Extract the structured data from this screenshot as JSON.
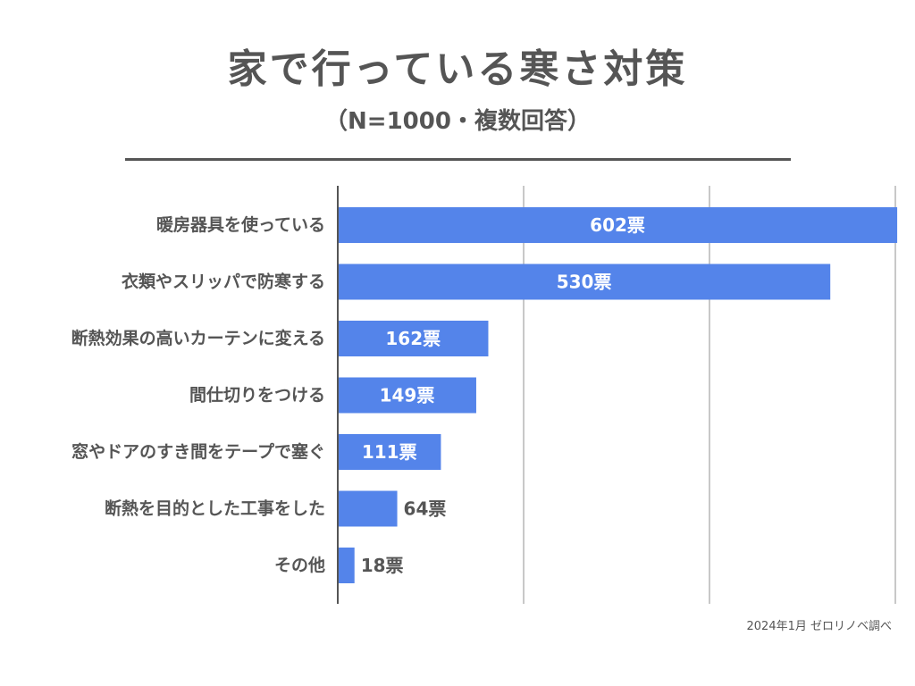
{
  "chart_data": {
    "type": "bar",
    "orientation": "horizontal",
    "title": "家で行っている寒さ対策",
    "subtitle": "（N=1000・複数回答）",
    "categories": [
      "暖房器具を使っている",
      "衣類やスリッパで防寒する",
      "断熱効果の高いカーテンに変える",
      "間仕切りをつける",
      "窓やドアのすき間をテープで塞ぐ",
      "断熱を目的とした工事をした",
      "その他"
    ],
    "values": [
      602,
      530,
      162,
      149,
      111,
      64,
      18
    ],
    "value_unit": "票",
    "xlim": [
      0,
      600
    ],
    "grid": true,
    "bar_color": "#5484ea",
    "text_color": "#555555",
    "grid_color": "#c8c8c8"
  },
  "source": "2024年1月 ゼロリノベ調べ"
}
